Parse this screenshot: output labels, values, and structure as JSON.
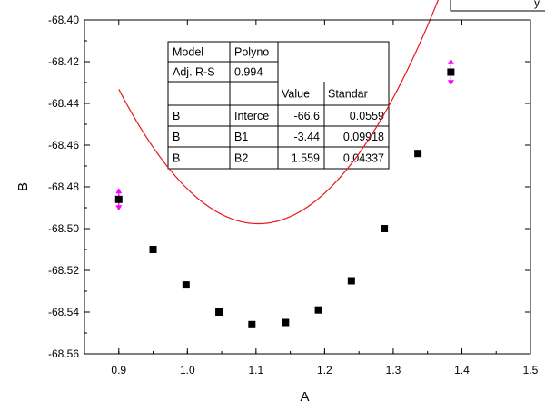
{
  "chart_data": {
    "type": "scatter",
    "xlabel": "A",
    "ylabel": "B",
    "xlim": [
      0.85,
      1.5
    ],
    "ylim": [
      -68.56,
      -68.4
    ],
    "x_ticks": [
      "0.9",
      "1.0",
      "1.1",
      "1.2",
      "1.3",
      "1.4",
      "1.5"
    ],
    "x_tick_values": [
      0.9,
      1.0,
      1.1,
      1.2,
      1.3,
      1.4,
      1.5
    ],
    "y_ticks": [
      "-68.40",
      "-68.42",
      "-68.44",
      "-68.46",
      "-68.48",
      "-68.50",
      "-68.52",
      "-68.54",
      "-68.56"
    ],
    "y_tick_values": [
      -68.4,
      -68.42,
      -68.44,
      -68.46,
      -68.48,
      -68.5,
      -68.52,
      -68.54,
      -68.56
    ],
    "points": [
      {
        "x": 0.9,
        "y": -68.486
      },
      {
        "x": 0.95,
        "y": -68.51
      },
      {
        "x": 0.998,
        "y": -68.527
      },
      {
        "x": 1.046,
        "y": -68.54
      },
      {
        "x": 1.094,
        "y": -68.546
      },
      {
        "x": 1.143,
        "y": -68.545
      },
      {
        "x": 1.191,
        "y": -68.539
      },
      {
        "x": 1.239,
        "y": -68.525
      },
      {
        "x": 1.287,
        "y": -68.5
      },
      {
        "x": 1.336,
        "y": -68.464
      },
      {
        "x": 1.384,
        "y": -68.425
      }
    ],
    "error_points": [
      {
        "x": 0.9,
        "y": -68.486,
        "err": 0.005
      },
      {
        "x": 1.384,
        "y": -68.425,
        "err": 0.006
      }
    ],
    "fit": {
      "type": "polynomial",
      "intercept": -66.6,
      "b1": -3.44,
      "b2": 1.559,
      "x_range": [
        0.9,
        1.384
      ]
    },
    "colors": {
      "points": "#000000",
      "fit": "#e8171b",
      "error": "#ff00ff",
      "axis": "#000000"
    },
    "table": {
      "rows": [
        [
          "Model",
          "Polyno",
          "",
          ""
        ],
        [
          "Adj. R-S",
          "0.994",
          "",
          ""
        ],
        [
          "",
          "",
          "Value",
          "Standar"
        ],
        [
          "B",
          "Interce",
          "-66.6",
          "0.0559"
        ],
        [
          "B",
          "B1",
          "-3.44",
          "0.09918"
        ],
        [
          "B",
          "B2",
          "1.559",
          "0.04337"
        ]
      ]
    },
    "legend_fragment": "y"
  }
}
